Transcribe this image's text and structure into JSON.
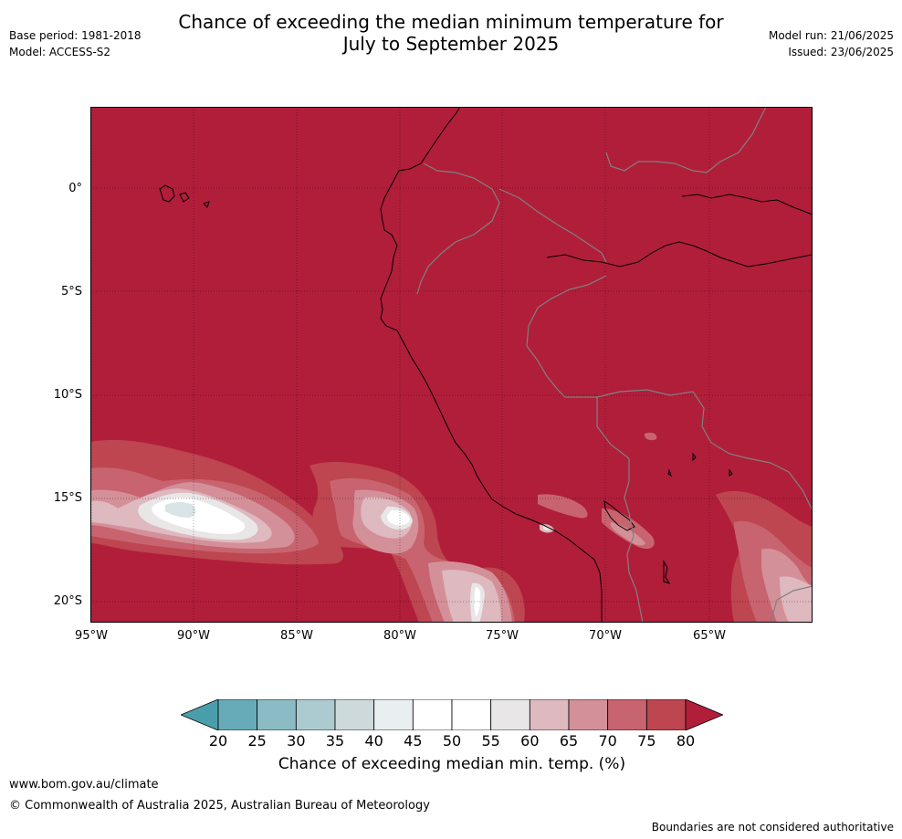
{
  "title_line1": "Chance of exceeding the median minimum temperature for",
  "title_line2": "July to September 2025",
  "base_period": "Base period: 1981-2018",
  "model": "Model: ACCESS-S2",
  "model_run": "Model run: 21/06/2025",
  "issued": "Issued: 23/06/2025",
  "lat_labels": [
    "0°",
    "5°S",
    "10°S",
    "15°S",
    "20°S"
  ],
  "lon_labels": [
    "95°W",
    "90°W",
    "85°W",
    "80°W",
    "75°W",
    "70°W",
    "65°W"
  ],
  "colorbar": {
    "ticks": [
      "20",
      "25",
      "30",
      "35",
      "40",
      "45",
      "50",
      "55",
      "60",
      "65",
      "70",
      "75",
      "80"
    ],
    "colors": [
      "#4a9eac",
      "#68abb8",
      "#8bbcc6",
      "#abcbd0",
      "#cdd9db",
      "#e9eef0",
      "#ffffff",
      "#ffffff",
      "#e9e6e7",
      "#deb9bf",
      "#d49099",
      "#c8646f",
      "#bd4650",
      "#b11e3a"
    ],
    "title": "Chance of exceeding median min. temp. (%)"
  },
  "map_colors": {
    "background": "#b11e3a",
    "c75": "#bd4650",
    "c70": "#c8646f",
    "c65": "#d49099",
    "c60": "#deb9bf",
    "c55": "#e9e6e7",
    "c50": "#ffffff",
    "c45": "#d8e4e6",
    "coast": "#000000",
    "border": "#808080"
  },
  "footer_url": "www.bom.gov.au/climate",
  "footer_copy": "© Commonwealth of Australia 2025, Australian Bureau of Meteorology",
  "footer_disclaimer": "Boundaries are not considered authoritative"
}
